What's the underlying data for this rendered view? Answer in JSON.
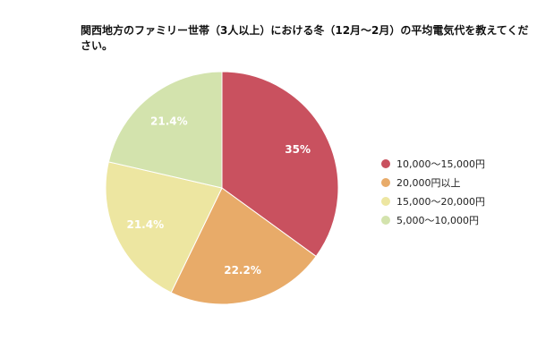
{
  "chart_data": {
    "type": "pie",
    "title": "関西地方のファミリー世帯（3人以上）における冬（12月～2月）の平均電気代を教えてください。",
    "legend_position": "right",
    "slices": [
      {
        "label": "10,000～15,000円",
        "value": 35,
        "value_label": "35%",
        "color": "#c9515f"
      },
      {
        "label": "20,000円以上",
        "value": 22.2,
        "value_label": "22.2%",
        "color": "#e8ab69"
      },
      {
        "label": "15,000～20,000円",
        "value": 21.4,
        "value_label": "21.4%",
        "color": "#ede6a1"
      },
      {
        "label": "5,000～10,000円",
        "value": 21.4,
        "value_label": "21.4%",
        "color": "#d3e3ad"
      }
    ]
  }
}
